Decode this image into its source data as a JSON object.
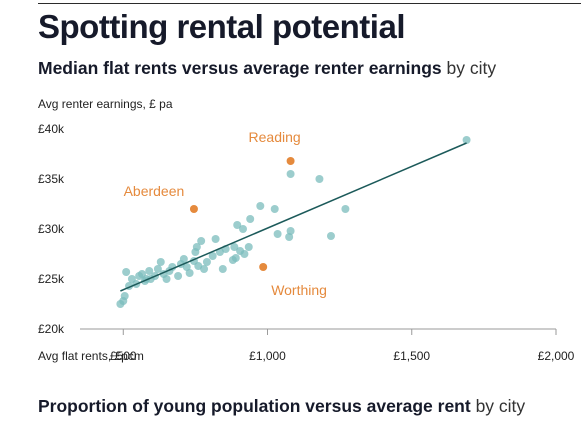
{
  "header": {
    "title": "Spotting rental potential",
    "subtitle_bold": "Median flat rents versus average renter earnings",
    "subtitle_light": "by city"
  },
  "next_section": {
    "subtitle_bold": "Proportion of young population versus average rent",
    "subtitle_light": "by city"
  },
  "colors": {
    "point": "#7bbcbc",
    "highlight": "#e58a3d",
    "trend": "#1c5a5a",
    "axis": "#9a9a9a"
  },
  "chart_data": {
    "type": "scatter",
    "title": "Median flat rents versus average renter earnings",
    "xlabel": "Avg flat rents, £pcm",
    "ylabel": "Avg renter earnings, £ pa",
    "xlim": [
      350,
      2000
    ],
    "ylim": [
      20000,
      40000
    ],
    "x_ticks": [
      500,
      1000,
      1500,
      2000
    ],
    "x_tick_labels": [
      "£500",
      "£1,000",
      "£1,500",
      "£2,000"
    ],
    "y_ticks": [
      20000,
      25000,
      30000,
      35000,
      40000
    ],
    "y_tick_labels": [
      "£20k",
      "£25k",
      "£30k",
      "£35k",
      "£40k"
    ],
    "grid": false,
    "trendline": {
      "x": [
        490,
        1690
      ],
      "y": [
        23800,
        38600
      ]
    },
    "points": [
      {
        "x": 490,
        "y": 22500
      },
      {
        "x": 500,
        "y": 22800
      },
      {
        "x": 505,
        "y": 23300
      },
      {
        "x": 510,
        "y": 25700
      },
      {
        "x": 520,
        "y": 24300
      },
      {
        "x": 530,
        "y": 25000
      },
      {
        "x": 545,
        "y": 24500
      },
      {
        "x": 555,
        "y": 25300
      },
      {
        "x": 565,
        "y": 25500
      },
      {
        "x": 575,
        "y": 24800
      },
      {
        "x": 580,
        "y": 25000
      },
      {
        "x": 590,
        "y": 25800
      },
      {
        "x": 595,
        "y": 25000
      },
      {
        "x": 610,
        "y": 25300
      },
      {
        "x": 620,
        "y": 26000
      },
      {
        "x": 630,
        "y": 26700
      },
      {
        "x": 640,
        "y": 25500
      },
      {
        "x": 650,
        "y": 25000
      },
      {
        "x": 660,
        "y": 25800
      },
      {
        "x": 670,
        "y": 26200
      },
      {
        "x": 690,
        "y": 25300
      },
      {
        "x": 700,
        "y": 26500
      },
      {
        "x": 710,
        "y": 27000
      },
      {
        "x": 720,
        "y": 26200
      },
      {
        "x": 730,
        "y": 25600
      },
      {
        "x": 745,
        "y": 26800
      },
      {
        "x": 750,
        "y": 27700
      },
      {
        "x": 755,
        "y": 28200
      },
      {
        "x": 760,
        "y": 26300
      },
      {
        "x": 770,
        "y": 28800
      },
      {
        "x": 780,
        "y": 26000
      },
      {
        "x": 790,
        "y": 26700
      },
      {
        "x": 810,
        "y": 27300
      },
      {
        "x": 820,
        "y": 29000
      },
      {
        "x": 835,
        "y": 27700
      },
      {
        "x": 845,
        "y": 26000
      },
      {
        "x": 855,
        "y": 28000
      },
      {
        "x": 880,
        "y": 26900
      },
      {
        "x": 885,
        "y": 28200
      },
      {
        "x": 890,
        "y": 27100
      },
      {
        "x": 895,
        "y": 30400
      },
      {
        "x": 905,
        "y": 27800
      },
      {
        "x": 915,
        "y": 30000
      },
      {
        "x": 920,
        "y": 27500
      },
      {
        "x": 935,
        "y": 28200
      },
      {
        "x": 940,
        "y": 31000
      },
      {
        "x": 975,
        "y": 32300
      },
      {
        "x": 1025,
        "y": 32000
      },
      {
        "x": 1035,
        "y": 29500
      },
      {
        "x": 1075,
        "y": 29200
      },
      {
        "x": 1080,
        "y": 29800
      },
      {
        "x": 1080,
        "y": 35500
      },
      {
        "x": 1180,
        "y": 35000
      },
      {
        "x": 1220,
        "y": 29300
      },
      {
        "x": 1270,
        "y": 32000
      },
      {
        "x": 1690,
        "y": 38900
      }
    ],
    "highlights": [
      {
        "label": "Reading",
        "x": 1080,
        "y": 36800
      },
      {
        "label": "Aberdeen",
        "x": 745,
        "y": 32000
      },
      {
        "label": "Worthing",
        "x": 985,
        "y": 26200
      }
    ]
  }
}
